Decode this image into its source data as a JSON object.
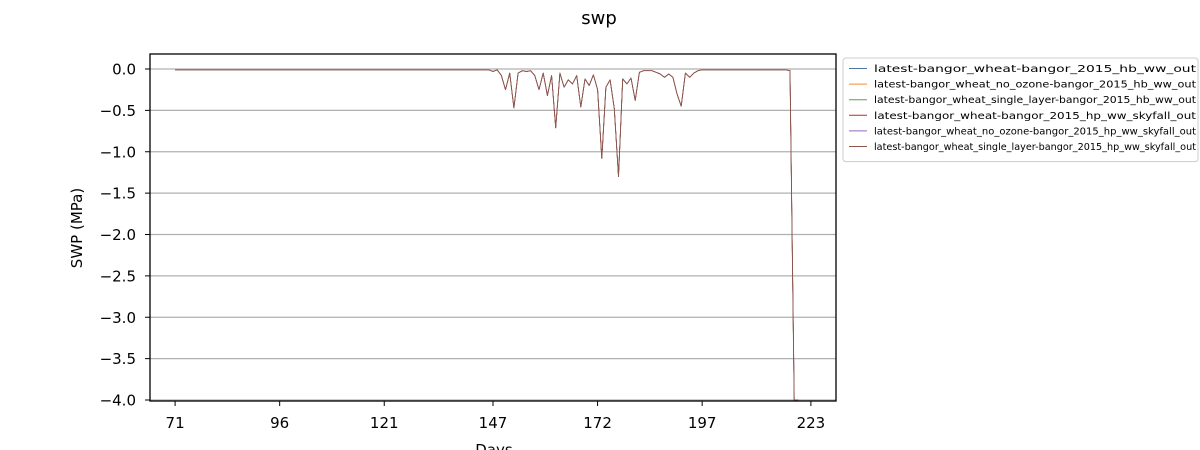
{
  "chart_data": {
    "type": "line",
    "title": "swp",
    "xlabel": "Days",
    "ylabel": "SWP (MPa)",
    "xlim": [
      65,
      229
    ],
    "ylim": [
      -4.0,
      0.18
    ],
    "xticks": [
      71,
      96,
      121,
      147,
      172,
      197,
      223
    ],
    "yticks": [
      0.0,
      -0.5,
      -1.0,
      -1.5,
      -2.0,
      -2.5,
      -3.0,
      -3.5,
      -4.0
    ],
    "ytick_labels": [
      "0.0",
      "−0.5",
      "−1.0",
      "−1.5",
      "−2.0",
      "−2.5",
      "−3.0",
      "−3.5",
      "−4.0"
    ],
    "grid": "horizontal",
    "legend_position": "outside-right",
    "x": [
      71,
      146,
      147,
      148,
      149,
      150,
      151,
      152,
      153,
      154,
      155,
      156,
      157,
      158,
      159,
      160,
      161,
      162,
      163,
      164,
      165,
      166,
      167,
      168,
      169,
      170,
      171,
      172,
      173,
      174,
      175,
      176,
      177,
      178,
      179,
      180,
      181,
      182,
      183,
      184,
      185,
      186,
      187,
      188,
      189,
      190,
      191,
      192,
      193,
      194,
      195,
      196,
      197,
      198,
      217,
      218,
      219,
      220
    ],
    "y": [
      -0.01,
      -0.01,
      -0.03,
      -0.01,
      -0.08,
      -0.25,
      -0.05,
      -0.47,
      -0.05,
      -0.02,
      -0.03,
      -0.02,
      -0.08,
      -0.25,
      -0.05,
      -0.32,
      -0.08,
      -0.71,
      -0.05,
      -0.22,
      -0.13,
      -0.18,
      -0.08,
      -0.46,
      -0.12,
      -0.2,
      -0.07,
      -0.25,
      -1.08,
      -0.22,
      -0.13,
      -0.48,
      -1.3,
      -0.12,
      -0.18,
      -0.11,
      -0.38,
      -0.04,
      -0.02,
      -0.02,
      -0.02,
      -0.04,
      -0.06,
      -0.1,
      -0.06,
      -0.1,
      -0.3,
      -0.45,
      -0.05,
      -0.1,
      -0.05,
      -0.02,
      -0.01,
      -0.01,
      -0.01,
      -0.02,
      -4.0,
      -4.0
    ],
    "series": [
      {
        "name": "latest-bangor_wheat-bangor_2015_hb_ww_out",
        "color": "#4e79a7",
        "width": 0.7
      },
      {
        "name": "latest-bangor_wheat_no_ozone-bangor_2015_hb_ww_out",
        "color": "#f28e2b",
        "width": 0.7
      },
      {
        "name": "latest-bangor_wheat_single_layer-bangor_2015_hb_ww_out",
        "color": "#59a14f",
        "width": 0.7
      },
      {
        "name": "latest-bangor_wheat-bangor_2015_hp_ww_skyfall_out",
        "color": "#c0282d",
        "width": 0.7
      },
      {
        "name": "latest-bangor_wheat_no_ozone-bangor_2015_hp_ww_skyfall_out",
        "color": "#9467bd",
        "width": 0.7
      },
      {
        "name": "latest-bangor_wheat_single_layer-bangor_2015_hp_ww_skyfall_out",
        "color": "#8c564b",
        "width": 0.9
      }
    ]
  }
}
